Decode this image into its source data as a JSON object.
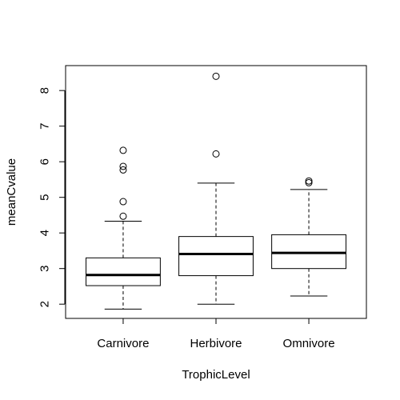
{
  "chart_data": {
    "type": "boxplot",
    "title": "",
    "xlabel": "TrophicLevel",
    "ylabel": "meanCvalue",
    "categories": [
      "Carnivore",
      "Herbivore",
      "Omnivore"
    ],
    "ylim": [
      1.6,
      8.7
    ],
    "yticks": [
      2,
      3,
      4,
      5,
      6,
      7,
      8
    ],
    "grid": false,
    "boxes": [
      {
        "category": "Carnivore",
        "whisker_low": 1.86,
        "q1": 2.52,
        "median": 2.82,
        "q3": 3.3,
        "whisker_high": 4.33,
        "outliers": [
          4.47,
          4.88,
          5.77,
          5.87,
          6.32
        ]
      },
      {
        "category": "Herbivore",
        "whisker_low": 2.0,
        "q1": 2.8,
        "median": 3.41,
        "q3": 3.9,
        "whisker_high": 5.4,
        "outliers": [
          6.22,
          8.4
        ]
      },
      {
        "category": "Omnivore",
        "whisker_low": 2.23,
        "q1": 3.0,
        "median": 3.44,
        "q3": 3.95,
        "whisker_high": 5.22,
        "outliers": [
          5.41,
          5.46
        ]
      }
    ]
  }
}
